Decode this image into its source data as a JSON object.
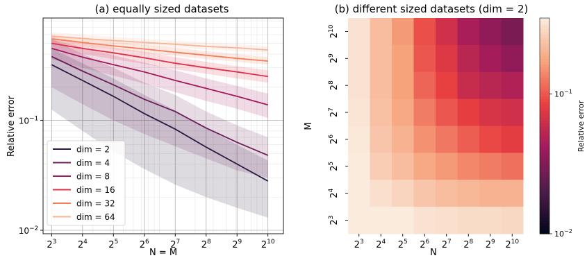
{
  "chart_data": [
    {
      "type": "line",
      "title": "(a) equally sized datasets",
      "xlabel": "N = M",
      "ylabel": "Relative error",
      "x_scale": "log2",
      "y_scale": "log10",
      "x": [
        8,
        16,
        32,
        64,
        128,
        256,
        512,
        1024
      ],
      "x_tick_labels": [
        {
          "base": "2",
          "exp": "3"
        },
        {
          "base": "2",
          "exp": "4"
        },
        {
          "base": "2",
          "exp": "5"
        },
        {
          "base": "2",
          "exp": "6"
        },
        {
          "base": "2",
          "exp": "7"
        },
        {
          "base": "2",
          "exp": "8"
        },
        {
          "base": "2",
          "exp": "9"
        },
        {
          "base": "2",
          "exp": "10"
        }
      ],
      "y_ticks": [
        0.01,
        0.1
      ],
      "y_tick_labels": [
        {
          "base": "10",
          "exp": "−2"
        },
        {
          "base": "10",
          "exp": "−1"
        }
      ],
      "xlim": [
        6.6,
        1450
      ],
      "ylim": [
        0.0093,
        0.85
      ],
      "grid": true,
      "legend_position": "bottom-left",
      "series": [
        {
          "name": "dim = 2",
          "color": "#2a1a3f",
          "values": [
            0.32,
            0.23,
            0.165,
            0.115,
            0.083,
            0.057,
            0.04,
            0.028
          ],
          "lower": [
            0.125,
            0.08,
            0.052,
            0.036,
            0.026,
            0.02,
            0.016,
            0.013
          ],
          "upper": [
            0.45,
            0.33,
            0.24,
            0.17,
            0.123,
            0.085,
            0.06,
            0.043
          ]
        },
        {
          "name": "dim = 4",
          "color": "#6b1e5a",
          "values": [
            0.38,
            0.28,
            0.21,
            0.155,
            0.12,
            0.085,
            0.063,
            0.048
          ],
          "lower": [
            0.2,
            0.14,
            0.1,
            0.075,
            0.058,
            0.045,
            0.035,
            0.03
          ],
          "upper": [
            0.55,
            0.4,
            0.3,
            0.22,
            0.17,
            0.12,
            0.09,
            0.07
          ]
        },
        {
          "name": "dim = 8",
          "color": "#a31b5c",
          "values": [
            0.45,
            0.375,
            0.32,
            0.275,
            0.23,
            0.195,
            0.165,
            0.138
          ],
          "lower": [
            0.36,
            0.3,
            0.255,
            0.215,
            0.18,
            0.15,
            0.127,
            0.105
          ],
          "upper": [
            0.55,
            0.46,
            0.39,
            0.335,
            0.285,
            0.24,
            0.205,
            0.175
          ]
        },
        {
          "name": "dim = 16",
          "color": "#e0314a",
          "values": [
            0.5,
            0.45,
            0.41,
            0.37,
            0.33,
            0.3,
            0.275,
            0.25
          ],
          "lower": [
            0.44,
            0.4,
            0.36,
            0.325,
            0.29,
            0.265,
            0.24,
            0.22
          ],
          "upper": [
            0.57,
            0.51,
            0.46,
            0.42,
            0.375,
            0.34,
            0.31,
            0.285
          ]
        },
        {
          "name": "dim = 32",
          "color": "#f47d5a",
          "values": [
            0.55,
            0.51,
            0.475,
            0.445,
            0.415,
            0.39,
            0.365,
            0.345
          ],
          "lower": [
            0.5,
            0.47,
            0.44,
            0.41,
            0.385,
            0.36,
            0.34,
            0.32
          ],
          "upper": [
            0.6,
            0.56,
            0.52,
            0.485,
            0.455,
            0.425,
            0.4,
            0.375
          ]
        },
        {
          "name": "dim = 64",
          "color": "#f6b596",
          "values": [
            0.58,
            0.555,
            0.53,
            0.51,
            0.49,
            0.47,
            0.455,
            0.435
          ],
          "lower": [
            0.54,
            0.515,
            0.495,
            0.475,
            0.455,
            0.44,
            0.425,
            0.41
          ],
          "upper": [
            0.63,
            0.6,
            0.575,
            0.55,
            0.53,
            0.51,
            0.49,
            0.47
          ]
        }
      ]
    },
    {
      "type": "heatmap",
      "title": "(b) different sized datasets (dim = 2)",
      "xlabel": "N",
      "ylabel": "M",
      "x_categories": [
        {
          "base": "2",
          "exp": "3"
        },
        {
          "base": "2",
          "exp": "4"
        },
        {
          "base": "2",
          "exp": "5"
        },
        {
          "base": "2",
          "exp": "6"
        },
        {
          "base": "2",
          "exp": "7"
        },
        {
          "base": "2",
          "exp": "8"
        },
        {
          "base": "2",
          "exp": "9"
        },
        {
          "base": "2",
          "exp": "10"
        }
      ],
      "y_categories": [
        {
          "base": "2",
          "exp": "10"
        },
        {
          "base": "2",
          "exp": "9"
        },
        {
          "base": "2",
          "exp": "8"
        },
        {
          "base": "2",
          "exp": "7"
        },
        {
          "base": "2",
          "exp": "6"
        },
        {
          "base": "2",
          "exp": "5"
        },
        {
          "base": "2",
          "exp": "4"
        },
        {
          "base": "2",
          "exp": "3"
        }
      ],
      "values": [
        [
          0.32,
          0.22,
          0.16,
          0.095,
          0.065,
          0.045,
          0.036,
          0.03
        ],
        [
          0.32,
          0.22,
          0.17,
          0.1,
          0.075,
          0.052,
          0.043,
          0.036
        ],
        [
          0.32,
          0.22,
          0.17,
          0.11,
          0.085,
          0.06,
          0.052,
          0.048
        ],
        [
          0.33,
          0.23,
          0.18,
          0.13,
          0.1,
          0.082,
          0.07,
          0.065
        ],
        [
          0.34,
          0.24,
          0.2,
          0.15,
          0.125,
          0.105,
          0.09,
          0.08
        ],
        [
          0.35,
          0.26,
          0.22,
          0.18,
          0.16,
          0.14,
          0.13,
          0.12
        ],
        [
          0.37,
          0.31,
          0.28,
          0.24,
          0.22,
          0.21,
          0.2,
          0.2
        ],
        [
          0.45,
          0.38,
          0.35,
          0.32,
          0.31,
          0.3,
          0.3,
          0.29
        ]
      ],
      "colorbar": {
        "label": "Relative error",
        "scale": "log10",
        "range": [
          0.01,
          0.35
        ],
        "ticks": [
          0.01,
          0.1
        ],
        "tick_labels": [
          {
            "base": "10",
            "exp": "−2"
          },
          {
            "base": "10",
            "exp": "−1"
          }
        ],
        "colormap": [
          "#03051a",
          "#4c1d4b",
          "#a11a5b",
          "#e83f3f",
          "#f6a47c",
          "#faebdd"
        ]
      }
    }
  ]
}
